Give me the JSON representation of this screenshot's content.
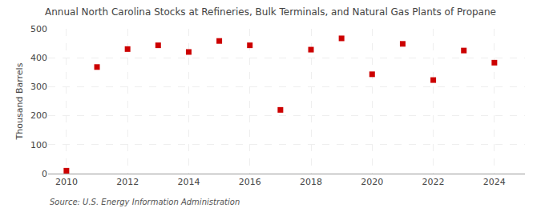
{
  "chart_data": {
    "type": "scatter",
    "title": "Annual North Carolina Stocks at Refineries, Bulk Terminals, and Natural Gas Plants of Propane",
    "ylabel": "Thousand Barrels",
    "annotations": [
      "Source: U.S. Energy Information Administration"
    ],
    "x": [
      2010,
      2011,
      2012,
      2013,
      2014,
      2015,
      2016,
      2017,
      2018,
      2019,
      2020,
      2021,
      2022,
      2023,
      2024
    ],
    "values": [
      10,
      368,
      430,
      443,
      420,
      458,
      443,
      220,
      428,
      467,
      343,
      448,
      323,
      425,
      383
    ],
    "color": "#cc0000",
    "marker": "square",
    "xlim": [
      2009.4,
      2025.0
    ],
    "xticks": [
      2010,
      2012,
      2014,
      2016,
      2018,
      2020,
      2022,
      2024
    ],
    "ylim": [
      0,
      500
    ],
    "yticks": [
      0,
      100,
      200,
      300,
      400,
      500
    ],
    "grid": true
  }
}
